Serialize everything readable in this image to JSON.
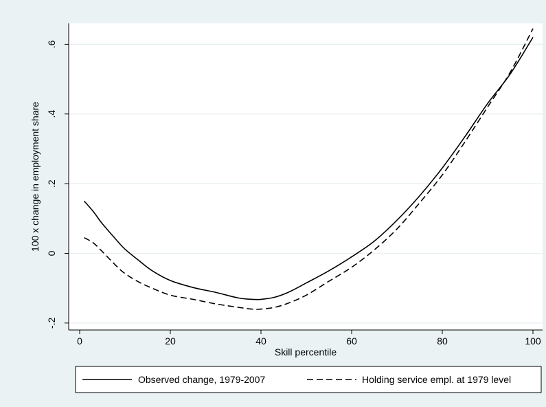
{
  "chart_data": {
    "type": "line",
    "title": "",
    "xlabel": "Skill percentile",
    "ylabel": "100 x change in employment share",
    "xlim": [
      0,
      100
    ],
    "ylim": [
      -0.22,
      0.66
    ],
    "x_ticks": [
      {
        "value": 0,
        "label": "0"
      },
      {
        "value": 20,
        "label": "20"
      },
      {
        "value": 40,
        "label": "40"
      },
      {
        "value": 60,
        "label": "60"
      },
      {
        "value": 80,
        "label": "80"
      },
      {
        "value": 100,
        "label": "100"
      }
    ],
    "y_ticks": [
      {
        "value": -0.2,
        "label": "-.2"
      },
      {
        "value": 0,
        "label": "0"
      },
      {
        "value": 0.2,
        "label": ".2"
      },
      {
        "value": 0.4,
        "label": ".4"
      },
      {
        "value": 0.6,
        "label": ".6"
      }
    ],
    "grid": "horizontal",
    "legend_position": "bottom",
    "colors": {
      "background": "#eaf2f3",
      "plot_area": "#ffffff",
      "grid": "#e6eef0",
      "line": "#000000"
    },
    "series": [
      {
        "name": "Observed change, 1979-2007",
        "style": "solid",
        "x": [
          1,
          3,
          5,
          8,
          10,
          13,
          16,
          20,
          25,
          30,
          35,
          38,
          40,
          43,
          46,
          50,
          55,
          60,
          65,
          70,
          75,
          80,
          85,
          90,
          95,
          100
        ],
        "y": [
          0.15,
          0.12,
          0.085,
          0.04,
          0.012,
          -0.02,
          -0.05,
          -0.078,
          -0.098,
          -0.112,
          -0.128,
          -0.132,
          -0.132,
          -0.126,
          -0.112,
          -0.085,
          -0.05,
          -0.01,
          0.035,
          0.095,
          0.165,
          0.245,
          0.335,
          0.43,
          0.515,
          0.62
        ]
      },
      {
        "name": "Holding service empl. at 1979 level",
        "style": "dashed",
        "x": [
          1,
          3,
          5,
          8,
          10,
          13,
          16,
          20,
          25,
          30,
          35,
          38,
          40,
          43,
          46,
          50,
          55,
          60,
          65,
          70,
          75,
          80,
          85,
          90,
          95,
          100
        ],
        "y": [
          0.045,
          0.03,
          0.005,
          -0.035,
          -0.058,
          -0.082,
          -0.1,
          -0.12,
          -0.132,
          -0.145,
          -0.155,
          -0.16,
          -0.16,
          -0.155,
          -0.143,
          -0.12,
          -0.08,
          -0.04,
          0.01,
          0.07,
          0.145,
          0.225,
          0.32,
          0.42,
          0.52,
          0.645
        ]
      }
    ]
  }
}
